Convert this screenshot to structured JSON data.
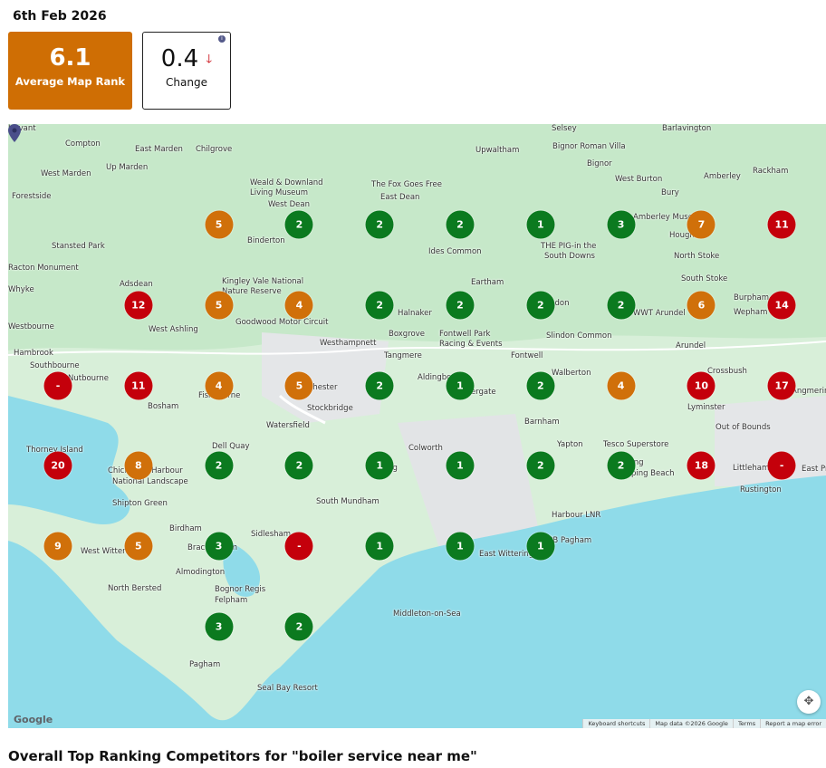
{
  "date": "6th Feb 2026",
  "average_rank": {
    "value": "6.1",
    "label": "Average Map Rank",
    "color": "#cf6e04"
  },
  "change": {
    "value": "0.4",
    "direction": "down",
    "arrow": "🡓",
    "label": "Change",
    "info_icon": "info-icon"
  },
  "colors": {
    "green": "#0b7a1f",
    "orange": "#d0700a",
    "red": "#c4000b"
  },
  "map": {
    "places": [
      "Compton",
      "East Marden",
      "Chilgrove",
      "West Marden",
      "Up Marden",
      "Forestside",
      "Weald & Downland",
      "Living Museum",
      "The Fox Goes Free",
      "West Dean",
      "East Dean",
      "Binderton",
      "Stansted Park",
      "Racton Monument",
      "Adsdean",
      "Kingley Vale National",
      "Nature Reserve",
      "West Ashling",
      "Goodwood Motor Circuit",
      "Halnaker",
      "Eartham",
      "Ides Common",
      "Upwaltham",
      "Bignor Roman Villa",
      "Bignor",
      "West Burton",
      "Bury",
      "Rackham",
      "Amberley",
      "Amberley Museum",
      "Houghton",
      "North Stoke",
      "South Stoke",
      "THE PIG-in the",
      "South Downs",
      "Burpham",
      "Wepham",
      "WWT Arundel",
      "Slindon",
      "Slindon Common",
      "Arundel",
      "Westbourne",
      "Hambrook",
      "Southbourne",
      "Nutbourne",
      "Bosham",
      "Fishbourne",
      "Chichester",
      "Westhampnett",
      "Tangmere",
      "Boxgrove",
      "Fontwell Park",
      "Racing & Events",
      "Fontwell",
      "Aldingbourne",
      "Westergate",
      "Walberton",
      "Crossbush",
      "Lyminster",
      "Angmering",
      "Barnham",
      "Out of Bounds",
      "Yapton",
      "Tesco Superstore",
      "Climping",
      "Climping Beach",
      "Littlehampton",
      "Rustington",
      "East Preston",
      "Dell Quay",
      "Thorney Island",
      "Chichester Harbour",
      "National Landscape",
      "Shipton Green",
      "Colworth",
      "Oving",
      "South Mundham",
      "Birdham",
      "West Wittering",
      "Bracklesham",
      "Sidlesham",
      "Almodington",
      "North Bersted",
      "Bognor Regis",
      "Felpham",
      "Middleton-on-Sea",
      "East Wittering",
      "RSPB Pagham",
      "Harbour LNR",
      "Pagham",
      "Seal Bay Resort",
      "Selsey",
      "Barlavington",
      "Watersfield",
      "Stockbridge",
      "Whyke",
      "Havant"
    ],
    "rank_grid": [
      [
        "",
        "",
        "5",
        "2",
        "2",
        "2",
        "1",
        "3",
        "7",
        "11"
      ],
      [
        "",
        "12",
        "5",
        "4",
        "2",
        "2",
        "2",
        "2",
        "6",
        "14"
      ],
      [
        "-",
        "11",
        "4",
        "5",
        "2",
        "1",
        "2",
        "4",
        "10",
        "17"
      ],
      [
        "20",
        "8",
        "2",
        "2",
        "1",
        "1",
        "2",
        "2",
        "18",
        "-"
      ],
      [
        "9",
        "5",
        "3",
        "-",
        "1",
        "1",
        "1",
        "",
        "",
        ""
      ],
      [
        "",
        "",
        "3",
        "2",
        "",
        "",
        "",
        "",
        "",
        ""
      ]
    ],
    "google_logo": "Google",
    "attribution": [
      "Keyboard shortcuts",
      "Map data ©2026 Google",
      "Terms",
      "Report a map error"
    ],
    "fullscreen_icon": "fullscreen-icon"
  },
  "section_heading": "Overall Top Ranking Competitors for \"boiler service near me\""
}
